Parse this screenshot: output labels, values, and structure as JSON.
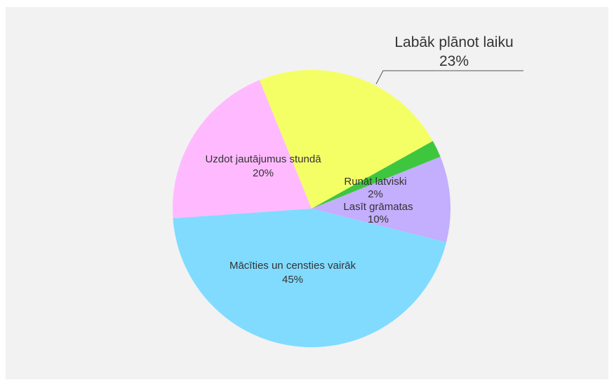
{
  "chart_data": {
    "type": "pie",
    "title": "",
    "slices": [
      {
        "label": "Mācīties un censties vairāk",
        "value": 45,
        "value_label": "45%",
        "color": "#80dbff"
      },
      {
        "label": "Lasīt grāmatas",
        "value": 10,
        "value_label": "10%",
        "color": "#c4aefe"
      },
      {
        "label": "Runāt latviski",
        "value": 2,
        "value_label": "2%",
        "color": "#3fc63f"
      },
      {
        "label": "Labāk plānot laiku",
        "value": 23,
        "value_label": "23%",
        "color": "#f4ff66"
      },
      {
        "label": "Uzdot jautājumus stundā",
        "value": 20,
        "value_label": "20%",
        "color": "#ffbaff"
      }
    ],
    "legend": "none"
  }
}
